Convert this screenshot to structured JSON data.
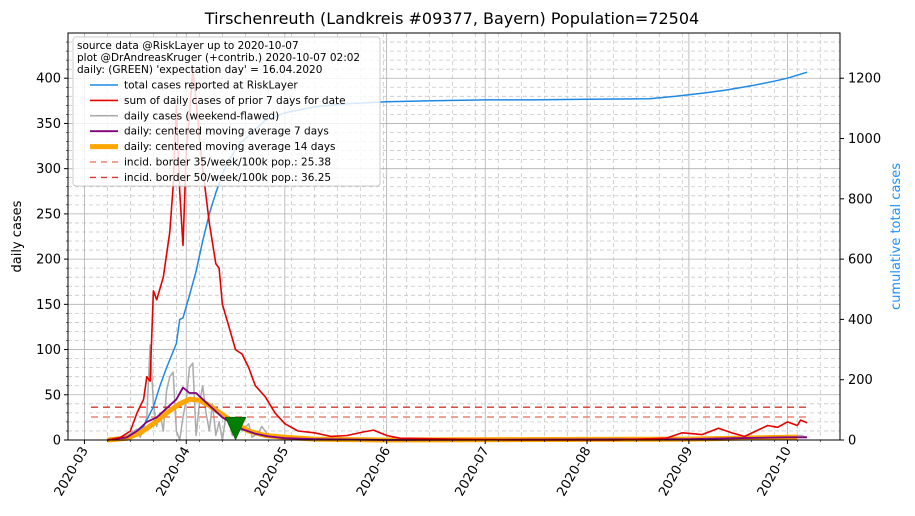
{
  "chart_data": {
    "type": "line",
    "title": "Tirschenreuth (Landkreis #09377, Bayern) Population=72504",
    "ylabel": "daily cases",
    "y2label": "cumulative total cases",
    "ylim": [
      0,
      450
    ],
    "y2lim": [
      0,
      1350
    ],
    "yticks": [
      0,
      50,
      100,
      150,
      200,
      250,
      300,
      350,
      400
    ],
    "y2ticks": [
      0,
      200,
      400,
      600,
      800,
      1000,
      1200
    ],
    "xlim": [
      "2020-02-25",
      "2020-10-17"
    ],
    "xticks": [
      "2020-03",
      "2020-04",
      "2020-05",
      "2020-06",
      "2020-07",
      "2020-08",
      "2020-09",
      "2020-10"
    ],
    "grid": true,
    "legend_placement": "upper-left",
    "legend_header": [
      "source data @RiskLayer up to 2020-10-07",
      "plot @DrAndreasKruger (+contrib.) 2020-10-07 02:02",
      "daily: (GREEN) 'expectation day' = 16.04.2020"
    ],
    "expectation_marker": {
      "x": "2020-04-16",
      "y": 14
    },
    "series": [
      {
        "name": "total cases reported at RiskLayer",
        "axis": "right",
        "color": "#1e88e5",
        "points": [
          [
            "2020-03-08",
            0
          ],
          [
            "2020-03-12",
            5
          ],
          [
            "2020-03-16",
            20
          ],
          [
            "2020-03-19",
            45
          ],
          [
            "2020-03-22",
            110
          ],
          [
            "2020-03-24",
            180
          ],
          [
            "2020-03-26",
            240
          ],
          [
            "2020-03-29",
            320
          ],
          [
            "2020-03-30",
            400
          ],
          [
            "2020-03-31",
            405
          ],
          [
            "2020-04-02",
            480
          ],
          [
            "2020-04-04",
            560
          ],
          [
            "2020-04-06",
            660
          ],
          [
            "2020-04-08",
            750
          ],
          [
            "2020-04-10",
            820
          ],
          [
            "2020-04-13",
            910
          ],
          [
            "2020-04-17",
            980
          ],
          [
            "2020-04-21",
            1020
          ],
          [
            "2020-04-25",
            1060
          ],
          [
            "2020-05-01",
            1085
          ],
          [
            "2020-05-10",
            1105
          ],
          [
            "2020-05-20",
            1115
          ],
          [
            "2020-06-01",
            1122
          ],
          [
            "2020-06-15",
            1125
          ],
          [
            "2020-07-01",
            1128
          ],
          [
            "2020-07-15",
            1128
          ],
          [
            "2020-08-01",
            1130
          ],
          [
            "2020-08-20",
            1132
          ],
          [
            "2020-08-28",
            1140
          ],
          [
            "2020-09-05",
            1150
          ],
          [
            "2020-09-12",
            1160
          ],
          [
            "2020-09-20",
            1175
          ],
          [
            "2020-09-27",
            1190
          ],
          [
            "2020-10-01",
            1200
          ],
          [
            "2020-10-07",
            1220
          ]
        ]
      },
      {
        "name": "sum of daily cases of prior 7 days for date",
        "axis": "left",
        "color": "#e60000",
        "points": [
          [
            "2020-03-08",
            0
          ],
          [
            "2020-03-12",
            3
          ],
          [
            "2020-03-15",
            10
          ],
          [
            "2020-03-17",
            30
          ],
          [
            "2020-03-19",
            45
          ],
          [
            "2020-03-20",
            70
          ],
          [
            "2020-03-21",
            65
          ],
          [
            "2020-03-22",
            165
          ],
          [
            "2020-03-23",
            155
          ],
          [
            "2020-03-25",
            180
          ],
          [
            "2020-03-27",
            230
          ],
          [
            "2020-03-28",
            280
          ],
          [
            "2020-03-29",
            370
          ],
          [
            "2020-03-30",
            275
          ],
          [
            "2020-03-31",
            215
          ],
          [
            "2020-04-01",
            320
          ],
          [
            "2020-04-02",
            360
          ],
          [
            "2020-04-03",
            410
          ],
          [
            "2020-04-04",
            375
          ],
          [
            "2020-04-05",
            335
          ],
          [
            "2020-04-06",
            300
          ],
          [
            "2020-04-08",
            240
          ],
          [
            "2020-04-10",
            195
          ],
          [
            "2020-04-11",
            190
          ],
          [
            "2020-04-12",
            150
          ],
          [
            "2020-04-14",
            125
          ],
          [
            "2020-04-16",
            100
          ],
          [
            "2020-04-18",
            95
          ],
          [
            "2020-04-20",
            80
          ],
          [
            "2020-04-22",
            60
          ],
          [
            "2020-04-25",
            48
          ],
          [
            "2020-04-28",
            30
          ],
          [
            "2020-05-01",
            18
          ],
          [
            "2020-05-05",
            10
          ],
          [
            "2020-05-10",
            8
          ],
          [
            "2020-05-15",
            4
          ],
          [
            "2020-05-20",
            5
          ],
          [
            "2020-05-25",
            9
          ],
          [
            "2020-05-28",
            11
          ],
          [
            "2020-06-01",
            5
          ],
          [
            "2020-06-05",
            2
          ],
          [
            "2020-06-20",
            1
          ],
          [
            "2020-07-10",
            0
          ],
          [
            "2020-08-10",
            0
          ],
          [
            "2020-08-25",
            2
          ],
          [
            "2020-08-30",
            8
          ],
          [
            "2020-09-05",
            6
          ],
          [
            "2020-09-10",
            13
          ],
          [
            "2020-09-14",
            8
          ],
          [
            "2020-09-18",
            4
          ],
          [
            "2020-09-22",
            11
          ],
          [
            "2020-09-25",
            16
          ],
          [
            "2020-09-28",
            14
          ],
          [
            "2020-10-01",
            20
          ],
          [
            "2020-10-04",
            16
          ],
          [
            "2020-10-05",
            22
          ],
          [
            "2020-10-07",
            19
          ]
        ]
      },
      {
        "name": "daily cases (weekend-flawed)",
        "axis": "left",
        "color": "#aaaaaa",
        "points": [
          [
            "2020-03-10",
            0
          ],
          [
            "2020-03-14",
            5
          ],
          [
            "2020-03-17",
            12
          ],
          [
            "2020-03-18",
            3
          ],
          [
            "2020-03-20",
            25
          ],
          [
            "2020-03-21",
            105
          ],
          [
            "2020-03-22",
            40
          ],
          [
            "2020-03-23",
            15
          ],
          [
            "2020-03-24",
            30
          ],
          [
            "2020-03-25",
            10
          ],
          [
            "2020-03-26",
            55
          ],
          [
            "2020-03-27",
            70
          ],
          [
            "2020-03-28",
            75
          ],
          [
            "2020-03-29",
            10
          ],
          [
            "2020-03-30",
            0
          ],
          [
            "2020-03-31",
            25
          ],
          [
            "2020-04-01",
            45
          ],
          [
            "2020-04-02",
            80
          ],
          [
            "2020-04-03",
            85
          ],
          [
            "2020-04-04",
            5
          ],
          [
            "2020-04-05",
            40
          ],
          [
            "2020-04-06",
            60
          ],
          [
            "2020-04-07",
            30
          ],
          [
            "2020-04-08",
            10
          ],
          [
            "2020-04-09",
            40
          ],
          [
            "2020-04-10",
            5
          ],
          [
            "2020-04-11",
            20
          ],
          [
            "2020-04-12",
            0
          ],
          [
            "2020-04-13",
            25
          ],
          [
            "2020-04-14",
            20
          ],
          [
            "2020-04-15",
            5
          ],
          [
            "2020-04-16",
            15
          ],
          [
            "2020-04-18",
            10
          ],
          [
            "2020-04-20",
            18
          ],
          [
            "2020-04-21",
            3
          ],
          [
            "2020-04-23",
            8
          ],
          [
            "2020-04-24",
            15
          ],
          [
            "2020-04-26",
            5
          ],
          [
            "2020-05-01",
            3
          ],
          [
            "2020-05-10",
            1
          ],
          [
            "2020-06-01",
            0
          ],
          [
            "2020-09-01",
            0
          ],
          [
            "2020-10-05",
            5
          ],
          [
            "2020-10-07",
            3
          ]
        ]
      },
      {
        "name": "daily: centered moving average 7 days",
        "axis": "left",
        "color": "#800080",
        "points": [
          [
            "2020-03-08",
            0
          ],
          [
            "2020-03-14",
            3
          ],
          [
            "2020-03-17",
            10
          ],
          [
            "2020-03-20",
            20
          ],
          [
            "2020-03-23",
            25
          ],
          [
            "2020-03-26",
            35
          ],
          [
            "2020-03-29",
            45
          ],
          [
            "2020-03-31",
            58
          ],
          [
            "2020-04-02",
            52
          ],
          [
            "2020-04-04",
            52
          ],
          [
            "2020-04-06",
            45
          ],
          [
            "2020-04-09",
            35
          ],
          [
            "2020-04-12",
            25
          ],
          [
            "2020-04-15",
            18
          ],
          [
            "2020-04-18",
            12
          ],
          [
            "2020-04-22",
            7
          ],
          [
            "2020-04-26",
            4
          ],
          [
            "2020-05-01",
            2
          ],
          [
            "2020-05-10",
            1
          ],
          [
            "2020-06-01",
            0
          ],
          [
            "2020-09-01",
            1
          ],
          [
            "2020-09-15",
            2
          ],
          [
            "2020-10-01",
            3
          ],
          [
            "2020-10-07",
            3
          ]
        ]
      },
      {
        "name": "daily: centered moving average 14 days",
        "axis": "left",
        "color": "#ffa500",
        "points": [
          [
            "2020-03-08",
            0
          ],
          [
            "2020-03-14",
            2
          ],
          [
            "2020-03-18",
            8
          ],
          [
            "2020-03-22",
            18
          ],
          [
            "2020-03-26",
            30
          ],
          [
            "2020-03-30",
            40
          ],
          [
            "2020-04-02",
            45
          ],
          [
            "2020-04-05",
            44
          ],
          [
            "2020-04-08",
            38
          ],
          [
            "2020-04-12",
            28
          ],
          [
            "2020-04-16",
            18
          ],
          [
            "2020-04-20",
            10
          ],
          [
            "2020-04-25",
            5
          ],
          [
            "2020-05-01",
            3
          ],
          [
            "2020-05-10",
            1
          ],
          [
            "2020-06-01",
            0
          ],
          [
            "2020-09-01",
            1
          ],
          [
            "2020-09-15",
            2
          ],
          [
            "2020-10-01",
            3
          ],
          [
            "2020-10-04",
            3
          ]
        ]
      },
      {
        "name": "incid. border 35/week/100k pop.: 25.38",
        "axis": "left",
        "color": "#f08070",
        "dashed": true,
        "points": [
          [
            "2020-03-03",
            25.38
          ],
          [
            "2020-10-07",
            25.38
          ]
        ]
      },
      {
        "name": "incid. border 50/week/100k pop.: 36.25",
        "axis": "left",
        "color": "#d9352a",
        "dashed": true,
        "points": [
          [
            "2020-03-03",
            36.25
          ],
          [
            "2020-10-07",
            36.25
          ]
        ]
      }
    ]
  }
}
